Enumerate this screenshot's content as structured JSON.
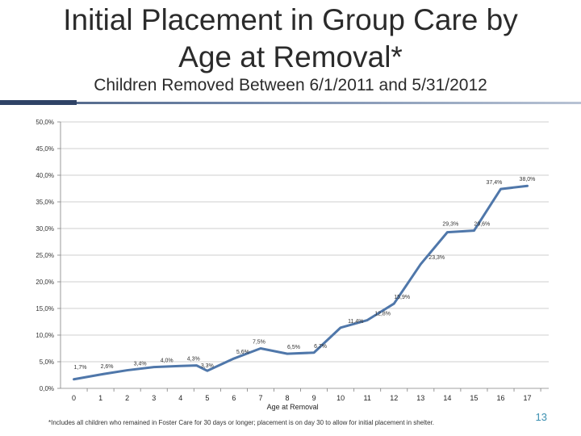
{
  "slide": {
    "title_line1": "Initial Placement in Group Care by",
    "title_line2": "Age at Removal*",
    "subtitle": "Children Removed Between 6/1/2011 and 5/31/2012",
    "footnote": "*Includes all children who remained in Foster Care for 30 days or longer; placement is on day 30 to allow for initial placement in shelter.",
    "page_number": "13"
  },
  "chart_data": {
    "type": "line",
    "title": "",
    "xlabel": "Age at Removal",
    "ylabel": "",
    "x": [
      0,
      1,
      2,
      3,
      4,
      5,
      6,
      7,
      8,
      9,
      10,
      11,
      12,
      13,
      14,
      15,
      16,
      17
    ],
    "x_tick_labels": [
      "0",
      "1",
      "2",
      "3",
      "4",
      "5",
      "6",
      "7",
      "8",
      "9",
      "10",
      "11",
      "12",
      "13",
      "14",
      "15",
      "16",
      "17"
    ],
    "ylim": [
      0,
      50
    ],
    "y_ticks": [
      0,
      5,
      10,
      15,
      20,
      25,
      30,
      35,
      40,
      45,
      50
    ],
    "y_tick_labels": [
      "0,0%",
      "5,0%",
      "10,0%",
      "15,0%",
      "20,0%",
      "25,0%",
      "30,0%",
      "35,0%",
      "40,0%",
      "45,0%",
      "50,0%"
    ],
    "grid": "horizontal",
    "series": [
      {
        "name": "Group Care",
        "color": "#4f77aa",
        "points": [
          {
            "x": 0,
            "y": 1.7
          },
          {
            "x": 1,
            "y": 2.6
          },
          {
            "x": 2,
            "y": 3.4
          },
          {
            "x": 3,
            "y": 4.0
          },
          {
            "x": 4,
            "y": 4.2
          },
          {
            "x": 4.6,
            "y": 4.3
          },
          {
            "x": 5,
            "y": 3.3
          },
          {
            "x": 6,
            "y": 5.6
          },
          {
            "x": 7,
            "y": 7.5
          },
          {
            "x": 8,
            "y": 6.5
          },
          {
            "x": 9,
            "y": 6.7
          },
          {
            "x": 10,
            "y": 11.4
          },
          {
            "x": 11,
            "y": 12.8
          },
          {
            "x": 12,
            "y": 15.9
          },
          {
            "x": 13,
            "y": 23.3
          },
          {
            "x": 14,
            "y": 29.3
          },
          {
            "x": 15,
            "y": 29.6
          },
          {
            "x": 16,
            "y": 37.4
          },
          {
            "x": 17,
            "y": 38.0
          }
        ]
      }
    ],
    "data_labels": [
      {
        "text": "1,7%",
        "x": 0.5,
        "y": 1.7,
        "dx": 0,
        "dy": -7
      },
      {
        "text": "2,6%",
        "x": 1.5,
        "y": 2.6,
        "dx": 0,
        "dy": -2
      },
      {
        "text": "3,4%",
        "x": 2.5,
        "y": 3.4,
        "dx": 8,
        "dy": 0
      },
      {
        "text": "4,0%",
        "x": 3.5,
        "y": 4.0,
        "dx": 8,
        "dy": 0
      },
      {
        "text": "4,3%",
        "x": 4.5,
        "y": 4.3,
        "dx": 8,
        "dy": 0
      },
      {
        "text": "3,3%",
        "x": 5.5,
        "y": 3.3,
        "dx": -8,
        "dy": 2
      },
      {
        "text": "5,6%",
        "x": 6.5,
        "y": 5.6,
        "dx": 3,
        "dy": 0
      },
      {
        "text": "7,5%",
        "x": 7.5,
        "y": 7.5,
        "dx": -10,
        "dy": 0
      },
      {
        "text": "6,5%",
        "x": 8.5,
        "y": 6.5,
        "dx": 0,
        "dy": 0
      },
      {
        "text": "6,7%",
        "x": 9.5,
        "y": 6.7,
        "dx": 0,
        "dy": 0
      },
      {
        "text": "11,4%",
        "x": 10.5,
        "y": 11.4,
        "dx": 9,
        "dy": 0
      },
      {
        "text": "12,8%",
        "x": 11.5,
        "y": 12.8,
        "dx": 9,
        "dy": 0
      },
      {
        "text": "15,9%",
        "x": 12.5,
        "y": 15.9,
        "dx": 0,
        "dy": 0
      },
      {
        "text": "23,3%",
        "x": 13.5,
        "y": 23.3,
        "dx": 10,
        "dy": 0
      },
      {
        "text": "29,3%",
        "x": 14.5,
        "y": 29.3,
        "dx": -6,
        "dy": -2
      },
      {
        "text": "29,6%",
        "x": 15.5,
        "y": 29.6,
        "dx": 0,
        "dy": 0
      },
      {
        "text": "37,4%",
        "x": 16.5,
        "y": 37.4,
        "dx": -18,
        "dy": 0
      },
      {
        "text": "38,0%",
        "x": 17.5,
        "y": 38.0,
        "dx": -10,
        "dy": 0
      }
    ]
  }
}
